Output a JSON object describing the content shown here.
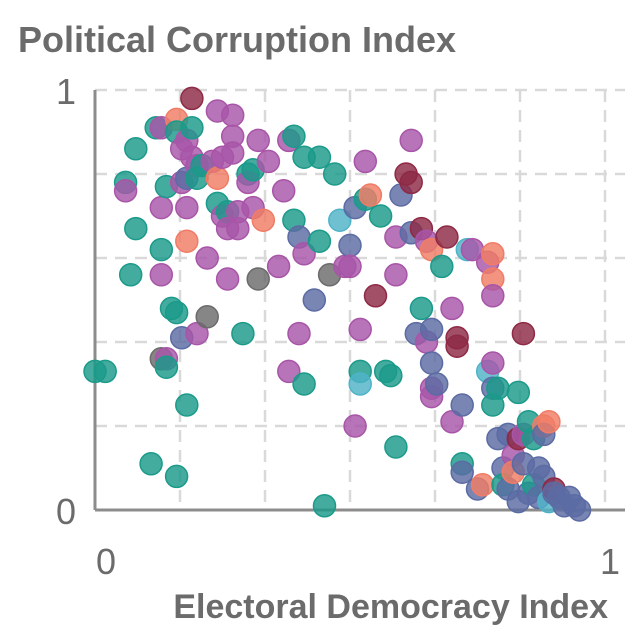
{
  "chart_data": {
    "type": "scatter",
    "title": "Political Corruption Index",
    "xlabel": "Electoral Democracy Index",
    "ylabel": "",
    "xlim": [
      0,
      1
    ],
    "ylim": [
      0,
      1
    ],
    "x_tick_labels": [
      "0",
      "1"
    ],
    "y_tick_labels": [
      "0",
      "1"
    ],
    "grid": true,
    "legend": "none",
    "colors": {
      "teal": "#1b9a8a",
      "purple": "#a855a8",
      "coral": "#f07c65",
      "maroon": "#8e2a45",
      "slate": "#5b6ba3",
      "gray": "#6b6b6b",
      "cyan": "#4fb3c8"
    },
    "points": [
      {
        "x": 0.0,
        "y": 0.33,
        "c": "teal"
      },
      {
        "x": 0.02,
        "y": 0.33,
        "c": "teal"
      },
      {
        "x": 0.06,
        "y": 0.78,
        "c": "teal"
      },
      {
        "x": 0.06,
        "y": 0.76,
        "c": "purple"
      },
      {
        "x": 0.07,
        "y": 0.56,
        "c": "teal"
      },
      {
        "x": 0.08,
        "y": 0.86,
        "c": "teal"
      },
      {
        "x": 0.08,
        "y": 0.67,
        "c": "teal"
      },
      {
        "x": 0.11,
        "y": 0.11,
        "c": "teal"
      },
      {
        "x": 0.12,
        "y": 0.91,
        "c": "teal"
      },
      {
        "x": 0.13,
        "y": 0.91,
        "c": "purple"
      },
      {
        "x": 0.13,
        "y": 0.72,
        "c": "purple"
      },
      {
        "x": 0.13,
        "y": 0.62,
        "c": "teal"
      },
      {
        "x": 0.13,
        "y": 0.56,
        "c": "purple"
      },
      {
        "x": 0.13,
        "y": 0.36,
        "c": "gray"
      },
      {
        "x": 0.14,
        "y": 0.36,
        "c": "purple"
      },
      {
        "x": 0.14,
        "y": 0.34,
        "c": "teal"
      },
      {
        "x": 0.14,
        "y": 0.77,
        "c": "teal"
      },
      {
        "x": 0.15,
        "y": 0.48,
        "c": "teal"
      },
      {
        "x": 0.16,
        "y": 0.93,
        "c": "coral"
      },
      {
        "x": 0.16,
        "y": 0.9,
        "c": "teal"
      },
      {
        "x": 0.16,
        "y": 0.47,
        "c": "teal"
      },
      {
        "x": 0.16,
        "y": 0.08,
        "c": "teal"
      },
      {
        "x": 0.17,
        "y": 0.86,
        "c": "purple"
      },
      {
        "x": 0.17,
        "y": 0.78,
        "c": "purple"
      },
      {
        "x": 0.17,
        "y": 0.41,
        "c": "slate"
      },
      {
        "x": 0.18,
        "y": 0.88,
        "c": "purple"
      },
      {
        "x": 0.18,
        "y": 0.79,
        "c": "slate"
      },
      {
        "x": 0.18,
        "y": 0.72,
        "c": "purple"
      },
      {
        "x": 0.18,
        "y": 0.64,
        "c": "coral"
      },
      {
        "x": 0.18,
        "y": 0.25,
        "c": "teal"
      },
      {
        "x": 0.19,
        "y": 0.98,
        "c": "maroon"
      },
      {
        "x": 0.19,
        "y": 0.91,
        "c": "teal"
      },
      {
        "x": 0.19,
        "y": 0.84,
        "c": "purple"
      },
      {
        "x": 0.2,
        "y": 0.82,
        "c": "purple"
      },
      {
        "x": 0.2,
        "y": 0.79,
        "c": "teal"
      },
      {
        "x": 0.2,
        "y": 0.42,
        "c": "purple"
      },
      {
        "x": 0.21,
        "y": 0.82,
        "c": "teal"
      },
      {
        "x": 0.22,
        "y": 0.6,
        "c": "purple"
      },
      {
        "x": 0.22,
        "y": 0.46,
        "c": "gray"
      },
      {
        "x": 0.23,
        "y": 0.83,
        "c": "purple"
      },
      {
        "x": 0.24,
        "y": 0.95,
        "c": "purple"
      },
      {
        "x": 0.24,
        "y": 0.79,
        "c": "coral"
      },
      {
        "x": 0.24,
        "y": 0.73,
        "c": "teal"
      },
      {
        "x": 0.25,
        "y": 0.84,
        "c": "purple"
      },
      {
        "x": 0.25,
        "y": 0.7,
        "c": "purple"
      },
      {
        "x": 0.26,
        "y": 0.71,
        "c": "teal"
      },
      {
        "x": 0.26,
        "y": 0.67,
        "c": "purple"
      },
      {
        "x": 0.26,
        "y": 0.55,
        "c": "purple"
      },
      {
        "x": 0.27,
        "y": 0.94,
        "c": "purple"
      },
      {
        "x": 0.27,
        "y": 0.89,
        "c": "purple"
      },
      {
        "x": 0.27,
        "y": 0.85,
        "c": "purple"
      },
      {
        "x": 0.28,
        "y": 0.71,
        "c": "purple"
      },
      {
        "x": 0.28,
        "y": 0.67,
        "c": "purple"
      },
      {
        "x": 0.29,
        "y": 0.42,
        "c": "teal"
      },
      {
        "x": 0.3,
        "y": 0.8,
        "c": "teal"
      },
      {
        "x": 0.3,
        "y": 0.78,
        "c": "purple"
      },
      {
        "x": 0.31,
        "y": 0.81,
        "c": "teal"
      },
      {
        "x": 0.31,
        "y": 0.72,
        "c": "purple"
      },
      {
        "x": 0.32,
        "y": 0.88,
        "c": "purple"
      },
      {
        "x": 0.32,
        "y": 0.55,
        "c": "gray"
      },
      {
        "x": 0.33,
        "y": 0.69,
        "c": "coral"
      },
      {
        "x": 0.34,
        "y": 0.83,
        "c": "purple"
      },
      {
        "x": 0.36,
        "y": 0.58,
        "c": "purple"
      },
      {
        "x": 0.37,
        "y": 0.76,
        "c": "purple"
      },
      {
        "x": 0.38,
        "y": 0.88,
        "c": "purple"
      },
      {
        "x": 0.38,
        "y": 0.33,
        "c": "purple"
      },
      {
        "x": 0.39,
        "y": 0.89,
        "c": "teal"
      },
      {
        "x": 0.39,
        "y": 0.69,
        "c": "teal"
      },
      {
        "x": 0.4,
        "y": 0.65,
        "c": "slate"
      },
      {
        "x": 0.4,
        "y": 0.42,
        "c": "purple"
      },
      {
        "x": 0.41,
        "y": 0.84,
        "c": "teal"
      },
      {
        "x": 0.41,
        "y": 0.61,
        "c": "purple"
      },
      {
        "x": 0.41,
        "y": 0.3,
        "c": "teal"
      },
      {
        "x": 0.43,
        "y": 0.5,
        "c": "slate"
      },
      {
        "x": 0.44,
        "y": 0.84,
        "c": "teal"
      },
      {
        "x": 0.44,
        "y": 0.64,
        "c": "teal"
      },
      {
        "x": 0.45,
        "y": 0.01,
        "c": "teal"
      },
      {
        "x": 0.46,
        "y": 0.56,
        "c": "gray"
      },
      {
        "x": 0.47,
        "y": 0.8,
        "c": "teal"
      },
      {
        "x": 0.48,
        "y": 0.69,
        "c": "cyan"
      },
      {
        "x": 0.49,
        "y": 0.58,
        "c": "purple"
      },
      {
        "x": 0.5,
        "y": 0.63,
        "c": "slate"
      },
      {
        "x": 0.5,
        "y": 0.58,
        "c": "purple"
      },
      {
        "x": 0.51,
        "y": 0.72,
        "c": "slate"
      },
      {
        "x": 0.51,
        "y": 0.2,
        "c": "purple"
      },
      {
        "x": 0.52,
        "y": 0.43,
        "c": "purple"
      },
      {
        "x": 0.52,
        "y": 0.33,
        "c": "teal"
      },
      {
        "x": 0.52,
        "y": 0.3,
        "c": "cyan"
      },
      {
        "x": 0.53,
        "y": 0.83,
        "c": "purple"
      },
      {
        "x": 0.53,
        "y": 0.74,
        "c": "teal"
      },
      {
        "x": 0.54,
        "y": 0.75,
        "c": "coral"
      },
      {
        "x": 0.55,
        "y": 0.51,
        "c": "maroon"
      },
      {
        "x": 0.56,
        "y": 0.7,
        "c": "teal"
      },
      {
        "x": 0.57,
        "y": 0.33,
        "c": "teal"
      },
      {
        "x": 0.58,
        "y": 0.32,
        "c": "teal"
      },
      {
        "x": 0.59,
        "y": 0.65,
        "c": "purple"
      },
      {
        "x": 0.59,
        "y": 0.56,
        "c": "purple"
      },
      {
        "x": 0.59,
        "y": 0.15,
        "c": "teal"
      },
      {
        "x": 0.6,
        "y": 0.75,
        "c": "slate"
      },
      {
        "x": 0.61,
        "y": 0.8,
        "c": "maroon"
      },
      {
        "x": 0.62,
        "y": 0.88,
        "c": "purple"
      },
      {
        "x": 0.62,
        "y": 0.78,
        "c": "maroon"
      },
      {
        "x": 0.62,
        "y": 0.66,
        "c": "slate"
      },
      {
        "x": 0.63,
        "y": 0.42,
        "c": "slate"
      },
      {
        "x": 0.64,
        "y": 0.67,
        "c": "maroon"
      },
      {
        "x": 0.64,
        "y": 0.48,
        "c": "teal"
      },
      {
        "x": 0.65,
        "y": 0.64,
        "c": "purple"
      },
      {
        "x": 0.65,
        "y": 0.4,
        "c": "purple"
      },
      {
        "x": 0.66,
        "y": 0.62,
        "c": "coral"
      },
      {
        "x": 0.66,
        "y": 0.43,
        "c": "slate"
      },
      {
        "x": 0.66,
        "y": 0.35,
        "c": "slate"
      },
      {
        "x": 0.66,
        "y": 0.29,
        "c": "purple"
      },
      {
        "x": 0.66,
        "y": 0.27,
        "c": "purple"
      },
      {
        "x": 0.67,
        "y": 0.3,
        "c": "slate"
      },
      {
        "x": 0.68,
        "y": 0.58,
        "c": "teal"
      },
      {
        "x": 0.69,
        "y": 0.65,
        "c": "maroon"
      },
      {
        "x": 0.7,
        "y": 0.48,
        "c": "purple"
      },
      {
        "x": 0.7,
        "y": 0.21,
        "c": "purple"
      },
      {
        "x": 0.71,
        "y": 0.41,
        "c": "maroon"
      },
      {
        "x": 0.71,
        "y": 0.39,
        "c": "maroon"
      },
      {
        "x": 0.72,
        "y": 0.25,
        "c": "slate"
      },
      {
        "x": 0.72,
        "y": 0.11,
        "c": "teal"
      },
      {
        "x": 0.72,
        "y": 0.09,
        "c": "slate"
      },
      {
        "x": 0.73,
        "y": 0.62,
        "c": "cyan"
      },
      {
        "x": 0.74,
        "y": 0.62,
        "c": "purple"
      },
      {
        "x": 0.75,
        "y": 0.05,
        "c": "slate"
      },
      {
        "x": 0.76,
        "y": 0.06,
        "c": "coral"
      },
      {
        "x": 0.77,
        "y": 0.59,
        "c": "purple"
      },
      {
        "x": 0.77,
        "y": 0.33,
        "c": "cyan"
      },
      {
        "x": 0.78,
        "y": 0.61,
        "c": "coral"
      },
      {
        "x": 0.78,
        "y": 0.55,
        "c": "coral"
      },
      {
        "x": 0.78,
        "y": 0.51,
        "c": "purple"
      },
      {
        "x": 0.78,
        "y": 0.35,
        "c": "purple"
      },
      {
        "x": 0.78,
        "y": 0.29,
        "c": "slate"
      },
      {
        "x": 0.78,
        "y": 0.25,
        "c": "teal"
      },
      {
        "x": 0.79,
        "y": 0.29,
        "c": "teal"
      },
      {
        "x": 0.79,
        "y": 0.17,
        "c": "slate"
      },
      {
        "x": 0.8,
        "y": 0.1,
        "c": "slate"
      },
      {
        "x": 0.8,
        "y": 0.06,
        "c": "teal"
      },
      {
        "x": 0.81,
        "y": 0.18,
        "c": "slate"
      },
      {
        "x": 0.81,
        "y": 0.05,
        "c": "slate"
      },
      {
        "x": 0.82,
        "y": 0.13,
        "c": "purple"
      },
      {
        "x": 0.82,
        "y": 0.09,
        "c": "coral"
      },
      {
        "x": 0.83,
        "y": 0.28,
        "c": "teal"
      },
      {
        "x": 0.83,
        "y": 0.17,
        "c": "maroon"
      },
      {
        "x": 0.83,
        "y": 0.02,
        "c": "slate"
      },
      {
        "x": 0.84,
        "y": 0.42,
        "c": "maroon"
      },
      {
        "x": 0.84,
        "y": 0.18,
        "c": "purple"
      },
      {
        "x": 0.84,
        "y": 0.11,
        "c": "slate"
      },
      {
        "x": 0.85,
        "y": 0.21,
        "c": "teal"
      },
      {
        "x": 0.85,
        "y": 0.04,
        "c": "slate"
      },
      {
        "x": 0.86,
        "y": 0.17,
        "c": "teal"
      },
      {
        "x": 0.86,
        "y": 0.06,
        "c": "teal"
      },
      {
        "x": 0.87,
        "y": 0.1,
        "c": "slate"
      },
      {
        "x": 0.87,
        "y": 0.03,
        "c": "slate"
      },
      {
        "x": 0.88,
        "y": 0.2,
        "c": "coral"
      },
      {
        "x": 0.88,
        "y": 0.18,
        "c": "slate"
      },
      {
        "x": 0.88,
        "y": 0.08,
        "c": "slate"
      },
      {
        "x": 0.89,
        "y": 0.02,
        "c": "cyan"
      },
      {
        "x": 0.89,
        "y": 0.21,
        "c": "coral"
      },
      {
        "x": 0.9,
        "y": 0.05,
        "c": "maroon"
      },
      {
        "x": 0.9,
        "y": 0.04,
        "c": "slate"
      },
      {
        "x": 0.91,
        "y": 0.03,
        "c": "slate"
      },
      {
        "x": 0.92,
        "y": 0.01,
        "c": "slate"
      },
      {
        "x": 0.93,
        "y": 0.03,
        "c": "slate"
      },
      {
        "x": 0.94,
        "y": 0.01,
        "c": "slate"
      },
      {
        "x": 0.95,
        "y": 0.0,
        "c": "slate"
      }
    ]
  }
}
